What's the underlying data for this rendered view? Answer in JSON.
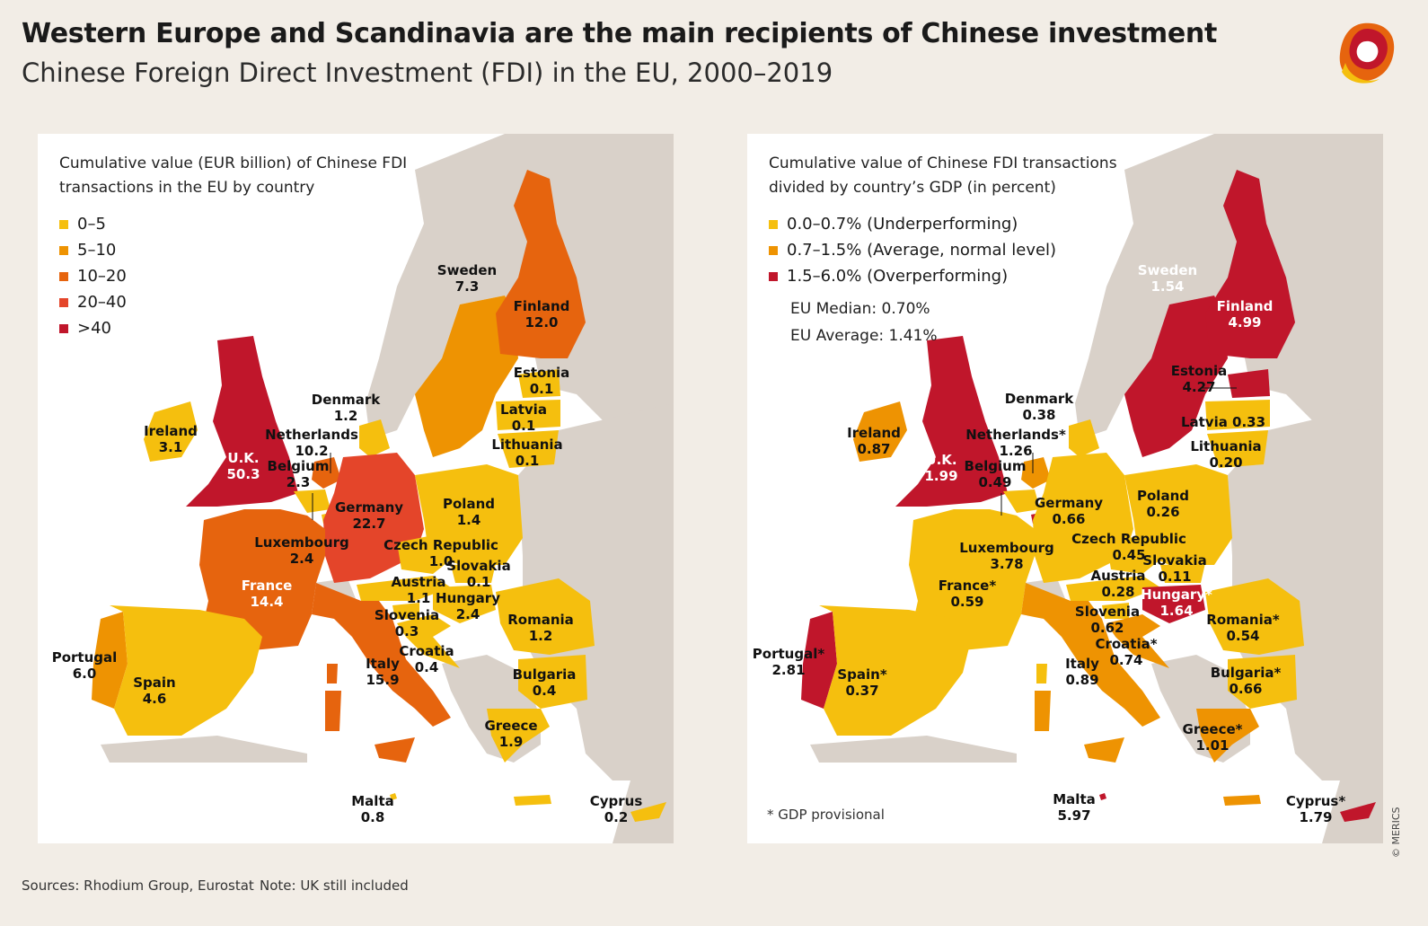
{
  "title": "Western Europe and Scandinavia are the main recipients of Chinese investment",
  "subtitle": "Chinese Foreign Direct Investment (FDI) in the EU, 2000–2019",
  "colors": {
    "c1": "#f5bf0e",
    "c2": "#ee9302",
    "c3": "#e6640e",
    "c4": "#e4452a",
    "c5": "#c0162b",
    "land": "#d9d1c9",
    "background": "#f2ede6"
  },
  "left_panel": {
    "title_line1": "Cumulative value (EUR billion) of Chinese FDI",
    "title_line2": "transactions in the EU by country",
    "legend": [
      {
        "label": "0–5",
        "color": "#f5bf0e"
      },
      {
        "label": "5–10",
        "color": "#ee9302"
      },
      {
        "label": "10–20",
        "color": "#e6640e"
      },
      {
        "label": "20–40",
        "color": "#e4452a"
      },
      {
        "label": ">40",
        "color": "#c0162b"
      }
    ],
    "countries": {
      "sweden": {
        "name": "Sweden",
        "value": "7.3"
      },
      "finland": {
        "name": "Finland",
        "value": "12.0"
      },
      "estonia": {
        "name": "Estonia",
        "value": "0.1"
      },
      "latvia": {
        "name": "Latvia",
        "value": "0.1"
      },
      "lithuania": {
        "name": "Lithuania",
        "value": "0.1"
      },
      "denmark": {
        "name": "Denmark",
        "value": "1.2"
      },
      "ireland": {
        "name": "Ireland",
        "value": "3.1"
      },
      "uk": {
        "name": "U.K.",
        "value": "50.3"
      },
      "netherlands": {
        "name": "Netherlands",
        "value": "10.2"
      },
      "belgium": {
        "name": "Belgium",
        "value": "2.3"
      },
      "germany": {
        "name": "Germany",
        "value": "22.7"
      },
      "poland": {
        "name": "Poland",
        "value": "1.4"
      },
      "luxembourg": {
        "name": "Luxembourg",
        "value": "2.4"
      },
      "czech": {
        "name": "Czech Republic",
        "value": "1.0"
      },
      "slovakia": {
        "name": "Slovakia",
        "value": "0.1"
      },
      "austria": {
        "name": "Austria",
        "value": "1.1"
      },
      "hungary": {
        "name": "Hungary",
        "value": "2.4"
      },
      "france": {
        "name": "France",
        "value": "14.4"
      },
      "slovenia": {
        "name": "Slovenia",
        "value": "0.3"
      },
      "romania": {
        "name": "Romania",
        "value": "1.2"
      },
      "croatia": {
        "name": "Croatia",
        "value": "0.4"
      },
      "portugal": {
        "name": "Portugal",
        "value": "6.0"
      },
      "spain": {
        "name": "Spain",
        "value": "4.6"
      },
      "italy": {
        "name": "Italy",
        "value": "15.9"
      },
      "bulgaria": {
        "name": "Bulgaria",
        "value": "0.4"
      },
      "greece": {
        "name": "Greece",
        "value": "1.9"
      },
      "malta": {
        "name": "Malta",
        "value": "0.8"
      },
      "cyprus": {
        "name": "Cyprus",
        "value": "0.2"
      }
    }
  },
  "right_panel": {
    "title_line1": "Cumulative value of Chinese FDI transactions",
    "title_line2": "divided by country’s GDP (in percent)",
    "legend": [
      {
        "label": "0.0–0.7% (Underperforming)",
        "color": "#f5bf0e"
      },
      {
        "label": "0.7–1.5% (Average, normal level)",
        "color": "#ee9302"
      },
      {
        "label": "1.5–6.0% (Overperforming)",
        "color": "#c0162b"
      }
    ],
    "eu_median": "EU Median: 0.70%",
    "eu_average": "EU Average: 1.41%",
    "note": "* GDP provisional",
    "countries": {
      "sweden": {
        "name": "Sweden",
        "value": "1.54"
      },
      "finland": {
        "name": "Finland",
        "value": "4.99"
      },
      "estonia": {
        "name": "Estonia",
        "value": "4.27"
      },
      "latvia": {
        "name": "Latvia 0.33"
      },
      "lithuania": {
        "name": "Lithuania",
        "value": "0.20"
      },
      "denmark": {
        "name": "Denmark",
        "value": "0.38"
      },
      "ireland": {
        "name": "Ireland",
        "value": "0.87"
      },
      "uk": {
        "name": "U.K.",
        "value": "1.99"
      },
      "netherlands": {
        "name": "Netherlands*",
        "value": "1.26"
      },
      "belgium": {
        "name": "Belgium",
        "value": "0.49"
      },
      "germany": {
        "name": "Germany",
        "value": "0.66"
      },
      "poland": {
        "name": "Poland",
        "value": "0.26"
      },
      "luxembourg": {
        "name": "Luxembourg",
        "value": "3.78"
      },
      "czech": {
        "name": "Czech Republic",
        "value": "0.45"
      },
      "slovakia": {
        "name": "Slovakia",
        "value": "0.11"
      },
      "austria": {
        "name": "Austria",
        "value": "0.28"
      },
      "hungary": {
        "name": "Hungary*",
        "value": "1.64"
      },
      "france": {
        "name": "France*",
        "value": "0.59"
      },
      "slovenia": {
        "name": "Slovenia",
        "value": "0.62"
      },
      "romania": {
        "name": "Romania*",
        "value": "0.54"
      },
      "croatia": {
        "name": "Croatia*",
        "value": "0.74"
      },
      "portugal": {
        "name": "Portugal*",
        "value": "2.81"
      },
      "spain": {
        "name": "Spain*",
        "value": "0.37"
      },
      "italy": {
        "name": "Italy",
        "value": "0.89"
      },
      "bulgaria": {
        "name": "Bulgaria*",
        "value": "0.66"
      },
      "greece": {
        "name": "Greece*",
        "value": "1.01"
      },
      "malta": {
        "name": "Malta",
        "value": "5.97"
      },
      "cyprus": {
        "name": "Cyprus*",
        "value": "1.79"
      }
    }
  },
  "footer": {
    "sources": "Sources: Rhodium Group, Eurostat",
    "note": "Note: UK still included",
    "copyright": "© MERICS"
  }
}
